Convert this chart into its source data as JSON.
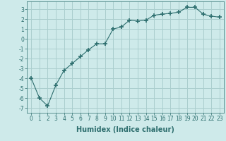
{
  "x": [
    0,
    1,
    2,
    3,
    4,
    5,
    6,
    7,
    8,
    9,
    10,
    11,
    12,
    13,
    14,
    15,
    16,
    17,
    18,
    19,
    20,
    21,
    22,
    23
  ],
  "y": [
    -4.0,
    -6.0,
    -6.8,
    -4.7,
    -3.2,
    -2.5,
    -1.8,
    -1.1,
    -0.5,
    -0.5,
    1.0,
    1.2,
    1.9,
    1.8,
    1.9,
    2.4,
    2.5,
    2.6,
    2.7,
    3.2,
    3.2,
    2.5,
    2.3,
    2.2
  ],
  "xlabel": "Humidex (Indice chaleur)",
  "ylim": [
    -7.5,
    3.8
  ],
  "xlim": [
    -0.5,
    23.5
  ],
  "yticks": [
    -7,
    -6,
    -5,
    -4,
    -3,
    -2,
    -1,
    0,
    1,
    2,
    3
  ],
  "xticks": [
    0,
    1,
    2,
    3,
    4,
    5,
    6,
    7,
    8,
    9,
    10,
    11,
    12,
    13,
    14,
    15,
    16,
    17,
    18,
    19,
    20,
    21,
    22,
    23
  ],
  "line_color": "#2d6e6e",
  "marker": "+",
  "marker_size": 4,
  "marker_linewidth": 1.2,
  "bg_color": "#ceeaea",
  "grid_color": "#aacece",
  "tick_label_fontsize": 5.5,
  "xlabel_fontsize": 7.0
}
